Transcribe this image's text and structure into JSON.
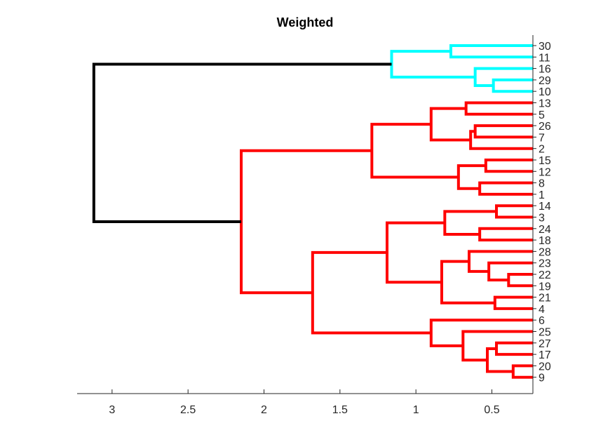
{
  "chart_data": {
    "type": "dendrogram",
    "title": "Weighted",
    "orientation": "right",
    "x_reversed": true,
    "xlim": [
      0.23,
      3.23
    ],
    "x_ticks": [
      3,
      2.5,
      2,
      1.5,
      1,
      0.5
    ],
    "x_tick_labels": [
      "3",
      "2.5",
      "2",
      "1.5",
      "1",
      "0.5"
    ],
    "leaf_order": [
      "30",
      "11",
      "16",
      "29",
      "10",
      "13",
      "5",
      "26",
      "7",
      "2",
      "15",
      "12",
      "8",
      "1",
      "14",
      "3",
      "24",
      "18",
      "28",
      "23",
      "22",
      "19",
      "21",
      "4",
      "6",
      "25",
      "27",
      "17",
      "20",
      "9"
    ],
    "colors": {
      "cyan": "#00ffff",
      "red": "#ff0000",
      "black": "#000000"
    },
    "merges": [
      {
        "id": "c1",
        "a": "30",
        "b": "11",
        "height": 0.77,
        "color": "cyan"
      },
      {
        "id": "c2",
        "a": "29",
        "b": "10",
        "height": 0.49,
        "color": "cyan"
      },
      {
        "id": "c3",
        "a": "16",
        "b": "c2",
        "height": 0.61,
        "color": "cyan"
      },
      {
        "id": "c4",
        "a": "c1",
        "b": "c3",
        "height": 1.16,
        "color": "cyan"
      },
      {
        "id": "c5",
        "a": "13",
        "b": "5",
        "height": 0.67,
        "color": "red"
      },
      {
        "id": "c6",
        "a": "26",
        "b": "7",
        "height": 0.61,
        "color": "red"
      },
      {
        "id": "c7",
        "a": "c6",
        "b": "2",
        "height": 0.64,
        "color": "red"
      },
      {
        "id": "c8",
        "a": "c5",
        "b": "c7",
        "height": 0.9,
        "color": "red"
      },
      {
        "id": "c9",
        "a": "15",
        "b": "12",
        "height": 0.54,
        "color": "red"
      },
      {
        "id": "c10",
        "a": "8",
        "b": "1",
        "height": 0.58,
        "color": "red"
      },
      {
        "id": "c11",
        "a": "c9",
        "b": "c10",
        "height": 0.72,
        "color": "red"
      },
      {
        "id": "c12",
        "a": "c8",
        "b": "c11",
        "height": 1.29,
        "color": "red"
      },
      {
        "id": "c13",
        "a": "14",
        "b": "3",
        "height": 0.47,
        "color": "red"
      },
      {
        "id": "c14",
        "a": "24",
        "b": "18",
        "height": 0.58,
        "color": "red"
      },
      {
        "id": "c15",
        "a": "c13",
        "b": "c14",
        "height": 0.81,
        "color": "red"
      },
      {
        "id": "c16",
        "a": "22",
        "b": "19",
        "height": 0.39,
        "color": "red"
      },
      {
        "id": "c17",
        "a": "23",
        "b": "c16",
        "height": 0.52,
        "color": "red"
      },
      {
        "id": "c18",
        "a": "28",
        "b": "c17",
        "height": 0.65,
        "color": "red"
      },
      {
        "id": "c19",
        "a": "21",
        "b": "4",
        "height": 0.48,
        "color": "red"
      },
      {
        "id": "c20",
        "a": "c18",
        "b": "c19",
        "height": 0.83,
        "color": "red"
      },
      {
        "id": "c21",
        "a": "c15",
        "b": "c20",
        "height": 1.19,
        "color": "red"
      },
      {
        "id": "c22",
        "a": "27",
        "b": "17",
        "height": 0.47,
        "color": "red"
      },
      {
        "id": "c23",
        "a": "20",
        "b": "9",
        "height": 0.36,
        "color": "red"
      },
      {
        "id": "c24",
        "a": "c22",
        "b": "c23",
        "height": 0.53,
        "color": "red"
      },
      {
        "id": "c25",
        "a": "25",
        "b": "c24",
        "height": 0.69,
        "color": "red"
      },
      {
        "id": "c26",
        "a": "6",
        "b": "c25",
        "height": 0.9,
        "color": "red"
      },
      {
        "id": "c27",
        "a": "c21",
        "b": "c26",
        "height": 1.68,
        "color": "red"
      },
      {
        "id": "c28",
        "a": "c12",
        "b": "c27",
        "height": 2.15,
        "color": "red"
      },
      {
        "id": "c29",
        "a": "c4",
        "b": "c28",
        "height": 3.12,
        "color": "black"
      }
    ]
  }
}
